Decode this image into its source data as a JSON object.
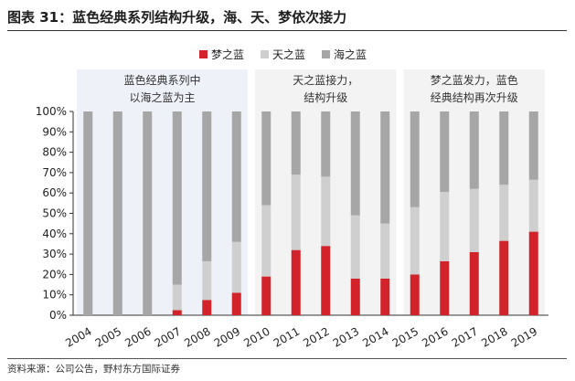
{
  "figure_title": "图表 31：蓝色经典系列结构升级，海、天、梦依次接力",
  "source": "资料来源：公司公告，野村东方国际证券",
  "colors": {
    "blue": "#a6a6a6",
    "tian": "#cfcfcf",
    "meng": "#d2232a",
    "panel_blue": "#eef1f8",
    "panel_gray": "#f3f3f3"
  },
  "chart_data": {
    "type": "bar",
    "stacked": true,
    "categories": [
      "2004",
      "2005",
      "2006",
      "2007",
      "2008",
      "2009",
      "2010",
      "2011",
      "2012",
      "2013",
      "2014",
      "2015",
      "2016",
      "2017",
      "2018",
      "2019"
    ],
    "series": [
      {
        "name": "梦之蓝",
        "color": "#d2232a",
        "values": [
          0,
          0,
          0,
          2.5,
          7.5,
          11,
          19,
          32,
          34,
          18,
          18,
          20,
          26.5,
          31,
          36.5,
          41
        ]
      },
      {
        "name": "天之蓝",
        "color": "#cfcfcf",
        "values": [
          0,
          0,
          0,
          12.5,
          19,
          25,
          35,
          37,
          34,
          31,
          27,
          33,
          34,
          31,
          27.5,
          25.5
        ]
      },
      {
        "name": "海之蓝",
        "color": "#a6a6a6",
        "values": [
          100,
          100,
          100,
          85,
          73.5,
          64,
          46,
          31,
          32,
          51,
          55,
          47,
          39.5,
          38,
          36,
          33.5
        ]
      }
    ],
    "y_ticks": [
      "0%",
      "10%",
      "20%",
      "30%",
      "40%",
      "50%",
      "60%",
      "70%",
      "80%",
      "90%",
      "100%"
    ],
    "ylim": [
      0,
      100
    ],
    "legend": [
      "梦之蓝",
      "天之蓝",
      "海之蓝"
    ],
    "annotations": [
      {
        "lines": [
          "蓝色经典系列中",
          "以海之蓝为主"
        ],
        "from": "2004",
        "to": "2009"
      },
      {
        "lines": [
          "天之蓝接力，",
          "结构升级"
        ],
        "from": "2010",
        "to": "2014"
      },
      {
        "lines": [
          "梦之蓝发力，蓝色",
          "经典结构再次升级"
        ],
        "from": "2015",
        "to": "2019"
      }
    ]
  }
}
